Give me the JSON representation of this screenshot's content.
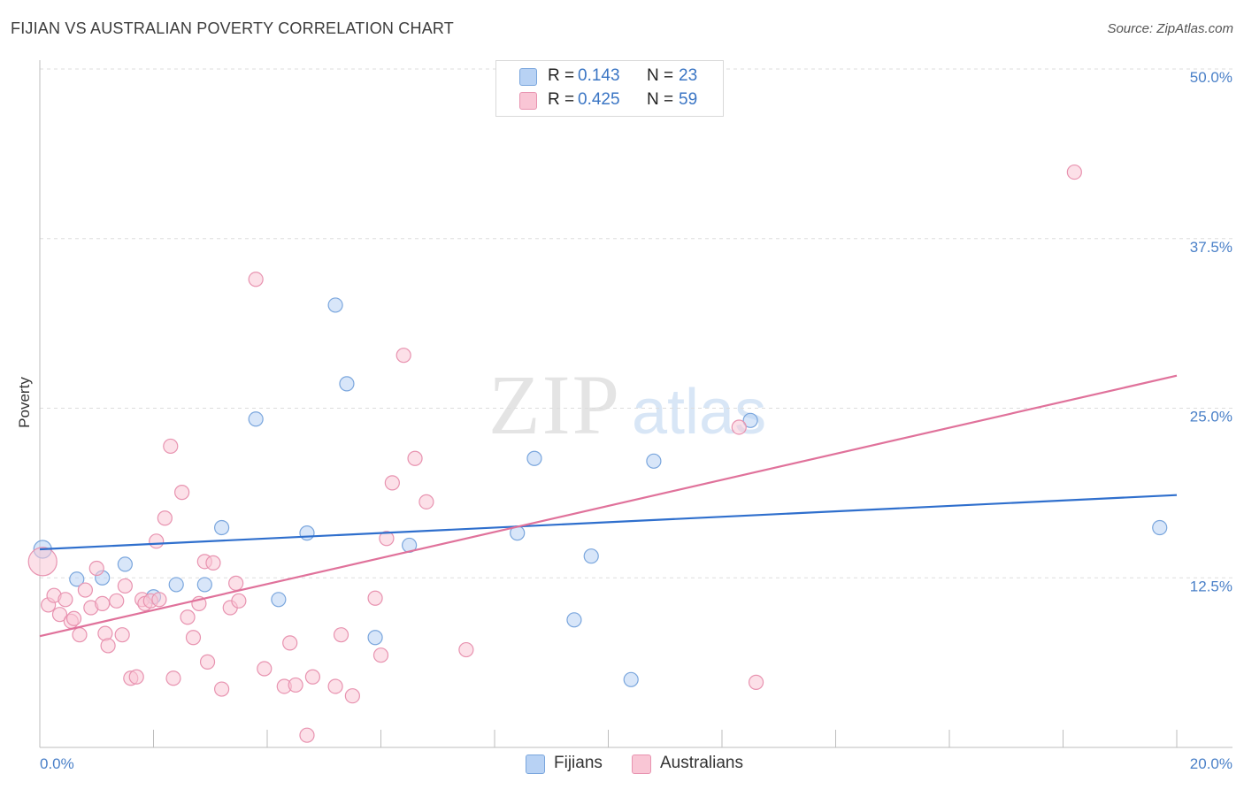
{
  "title": "FIJIAN VS AUSTRALIAN POVERTY CORRELATION CHART",
  "source": "Source: ZipAtlas.com",
  "watermark": {
    "zip": "ZIP",
    "atlas": "atlas"
  },
  "legend": {
    "rows": [
      {
        "r_label": "R =",
        "r_value": "0.143",
        "n_label": "N =",
        "n_value": "23"
      },
      {
        "r_label": "R =",
        "r_value": "0.425",
        "n_label": "N =",
        "n_value": "59"
      }
    ]
  },
  "bottom_legend": [
    "Fijians",
    "Australians"
  ],
  "colors": {
    "fijians_fill": "#b8d2f4",
    "fijians_stroke": "#7aa6dd",
    "fijians_line": "#2f6fcd",
    "australians_fill": "#f9c6d5",
    "australians_stroke": "#e893b0",
    "australians_line": "#e0729b",
    "tick_label": "#4a80c8",
    "grid": "#dddddd"
  },
  "chart_data": {
    "type": "scatter",
    "title": "FIJIAN VS AUSTRALIAN POVERTY CORRELATION CHART",
    "xlabel": "",
    "ylabel": "Poverty",
    "xlim": [
      0,
      20
    ],
    "ylim": [
      0,
      50
    ],
    "x_tick_labels": [
      "0.0%",
      "20.0%"
    ],
    "y_ticks": [
      12.5,
      25.0,
      37.5,
      50.0
    ],
    "y_tick_labels": [
      "12.5%",
      "25.0%",
      "37.5%",
      "50.0%"
    ],
    "grid": "horizontal dashed",
    "legend_position": "top-center",
    "series": [
      {
        "name": "Fijians",
        "r": 0.143,
        "n": 23,
        "trend": {
          "x": [
            0,
            20
          ],
          "y": [
            14.6,
            18.6
          ]
        },
        "points": [
          [
            0.05,
            14.6
          ],
          [
            0.65,
            12.4
          ],
          [
            1.1,
            12.5
          ],
          [
            1.5,
            13.5
          ],
          [
            2.0,
            11.1
          ],
          [
            2.4,
            12.0
          ],
          [
            2.9,
            12.0
          ],
          [
            3.2,
            16.2
          ],
          [
            3.8,
            24.2
          ],
          [
            4.2,
            10.9
          ],
          [
            4.7,
            15.8
          ],
          [
            5.2,
            32.6
          ],
          [
            5.4,
            26.8
          ],
          [
            5.9,
            8.1
          ],
          [
            6.5,
            14.9
          ],
          [
            8.4,
            15.8
          ],
          [
            8.7,
            21.3
          ],
          [
            9.4,
            9.4
          ],
          [
            9.7,
            14.1
          ],
          [
            10.4,
            5.0
          ],
          [
            10.8,
            21.1
          ],
          [
            12.5,
            24.1
          ],
          [
            19.7,
            16.2
          ]
        ]
      },
      {
        "name": "Australians",
        "r": 0.425,
        "n": 59,
        "trend": {
          "x": [
            0,
            20
          ],
          "y": [
            8.2,
            27.4
          ]
        },
        "points": [
          [
            0.05,
            13.7
          ],
          [
            0.15,
            10.5
          ],
          [
            0.25,
            11.2
          ],
          [
            0.35,
            9.8
          ],
          [
            0.45,
            10.9
          ],
          [
            0.55,
            9.3
          ],
          [
            0.6,
            9.5
          ],
          [
            0.7,
            8.3
          ],
          [
            0.8,
            11.6
          ],
          [
            0.9,
            10.3
          ],
          [
            1.0,
            13.2
          ],
          [
            1.1,
            10.6
          ],
          [
            1.15,
            8.4
          ],
          [
            1.2,
            7.5
          ],
          [
            1.35,
            10.8
          ],
          [
            1.45,
            8.3
          ],
          [
            1.5,
            11.9
          ],
          [
            1.6,
            5.1
          ],
          [
            1.7,
            5.2
          ],
          [
            1.8,
            10.9
          ],
          [
            1.85,
            10.6
          ],
          [
            1.95,
            10.8
          ],
          [
            2.05,
            15.2
          ],
          [
            2.1,
            10.9
          ],
          [
            2.2,
            16.9
          ],
          [
            2.3,
            22.2
          ],
          [
            2.35,
            5.1
          ],
          [
            2.5,
            18.8
          ],
          [
            2.6,
            9.6
          ],
          [
            2.7,
            8.1
          ],
          [
            2.8,
            10.6
          ],
          [
            2.9,
            13.7
          ],
          [
            2.95,
            6.3
          ],
          [
            3.05,
            13.6
          ],
          [
            3.2,
            4.3
          ],
          [
            3.35,
            10.3
          ],
          [
            3.45,
            12.1
          ],
          [
            3.5,
            10.8
          ],
          [
            3.8,
            34.5
          ],
          [
            3.95,
            5.8
          ],
          [
            4.3,
            4.5
          ],
          [
            4.4,
            7.7
          ],
          [
            4.5,
            4.6
          ],
          [
            4.7,
            0.9
          ],
          [
            4.8,
            5.2
          ],
          [
            5.2,
            4.5
          ],
          [
            5.3,
            8.3
          ],
          [
            5.5,
            3.8
          ],
          [
            5.9,
            11.0
          ],
          [
            6.0,
            6.8
          ],
          [
            6.1,
            15.4
          ],
          [
            6.2,
            19.5
          ],
          [
            6.4,
            28.9
          ],
          [
            6.6,
            21.3
          ],
          [
            6.8,
            18.1
          ],
          [
            7.5,
            7.2
          ],
          [
            12.3,
            23.6
          ],
          [
            12.6,
            4.8
          ],
          [
            18.2,
            42.4
          ]
        ]
      }
    ]
  }
}
